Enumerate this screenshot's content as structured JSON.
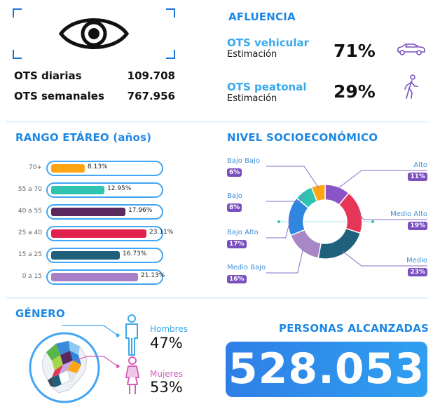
{
  "ots": {
    "daily_label": "OTS diarias",
    "daily_value": "109.708",
    "weekly_label": "OTS semanales",
    "weekly_value": "767.956",
    "icon": "eye-icon"
  },
  "afluencia": {
    "title": "AFLUENCIA",
    "vehicular": {
      "label": "OTS vehicular",
      "sub": "Estimación",
      "value": "71%",
      "icon": "car-icon"
    },
    "peatonal": {
      "label": "OTS peatonal",
      "sub": "Estimación",
      "value": "29%",
      "icon": "walking-person-icon"
    }
  },
  "age": {
    "title": "RANGO ETÁREO (años)",
    "rows": [
      {
        "label": "70+",
        "value": "8.13%",
        "pct": 8.13,
        "color": "#ffa514"
      },
      {
        "label": "55 a 70",
        "value": "12.95%",
        "pct": 12.95,
        "color": "#2ec4b0"
      },
      {
        "label": "40 a 55",
        "value": "17.96%",
        "pct": 17.96,
        "color": "#5a2a5e"
      },
      {
        "label": "25 a 40",
        "value": "23.11%",
        "pct": 23.11,
        "color": "#e0214e"
      },
      {
        "label": "15 a 25",
        "value": "16.73%",
        "pct": 16.73,
        "color": "#1e5f7a"
      },
      {
        "label": "0 a 15",
        "value": "21.13%",
        "pct": 21.13,
        "color": "#a87fc7"
      }
    ]
  },
  "nse": {
    "title": "NIVEL SOCIOECONÓMICO",
    "segments": [
      {
        "name": "Alto",
        "value": "11%",
        "pct": 11,
        "color": "#8a53c6"
      },
      {
        "name": "Medio Alto",
        "value": "19%",
        "pct": 19,
        "color": "#e63658"
      },
      {
        "name": "Medio",
        "value": "23%",
        "pct": 23,
        "color": "#1f607c"
      },
      {
        "name": "Medio Bajo",
        "value": "16%",
        "pct": 16,
        "color": "#a787c6"
      },
      {
        "name": "Bajo Alto",
        "value": "17%",
        "pct": 17,
        "color": "#2e86de"
      },
      {
        "name": "Bajo",
        "value": "8%",
        "pct": 8,
        "color": "#2ec4b0"
      },
      {
        "name": "Bajo Bajo",
        "value": "6%",
        "pct": 6,
        "color": "#ffa514"
      }
    ]
  },
  "genero": {
    "title": "GÉNERO",
    "hombres": {
      "label": "Hombres",
      "value": "47%",
      "color": "#3aa8ec",
      "icon": "man-icon"
    },
    "mujeres": {
      "label": "Mujeres",
      "value": "53%",
      "color": "#d45bbd",
      "icon": "woman-icon"
    },
    "map_icon": "ecuador-map-icon"
  },
  "reach": {
    "title": "PERSONAS ALCANZADAS",
    "value": "528.053"
  }
}
